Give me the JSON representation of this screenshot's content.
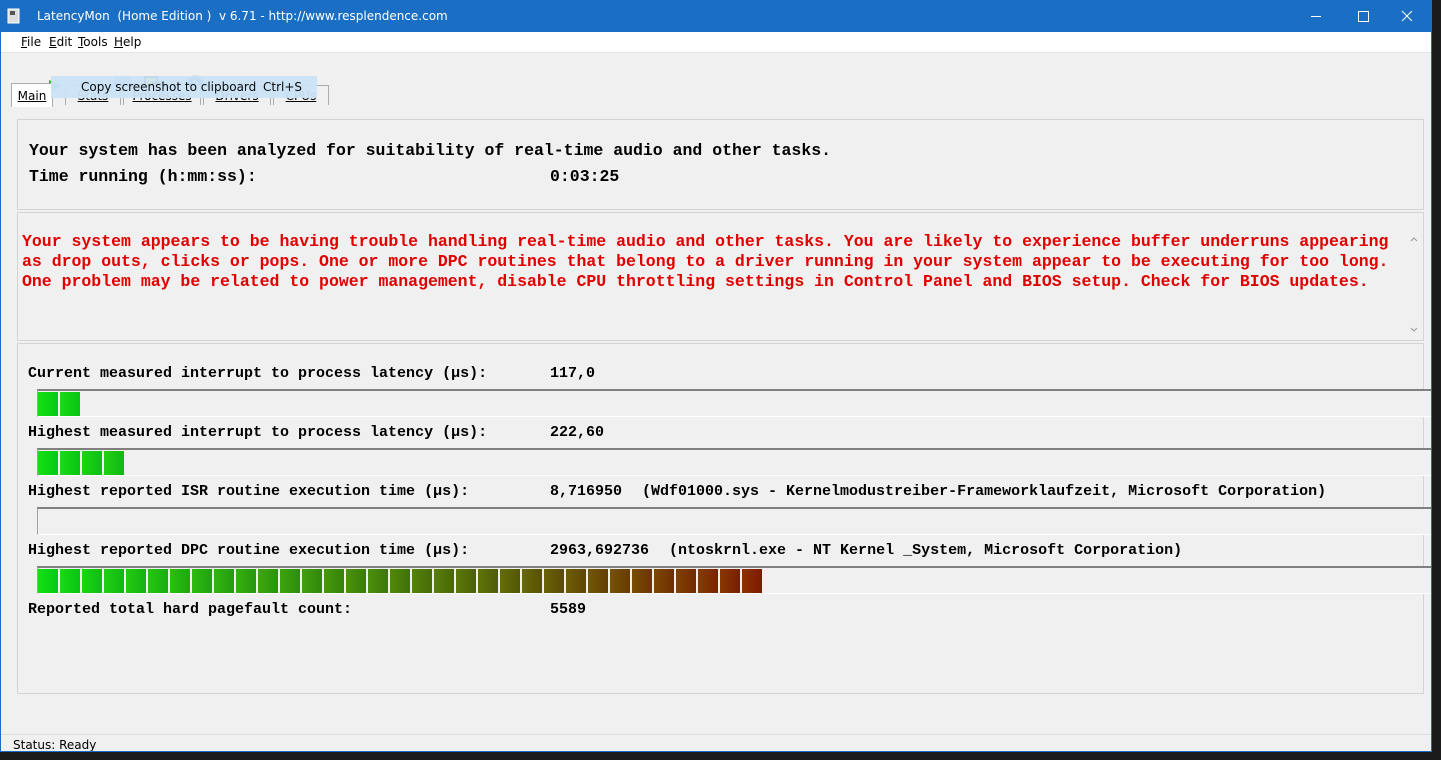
{
  "window": {
    "title": "LatencyMon  (Home Edition )  v 6.71 - http://www.resplendence.com"
  },
  "menu": [
    "File",
    "Edit",
    "Tools",
    "Help"
  ],
  "tooltip": {
    "text": "Copy screenshot to clipboard",
    "shortcut": "Ctrl+S"
  },
  "tabs": [
    "Main",
    "Stats",
    "Processes",
    "Drivers",
    "CPUs"
  ],
  "summary": {
    "message": "Your system has been analyzed for suitability of real-time audio and other tasks.",
    "time_label": "Time running (h:mm:ss):",
    "time_value": "0:03:25"
  },
  "warning": {
    "lines": [
      "Your system appears to be having trouble handling real-time audio and other tasks. You are likely to experience buffer underruns appearing",
      "as drop outs, clicks or pops. One or more DPC routines that belong to a driver running in your system appear to be executing for too long.",
      "One problem may be related to power management, disable CPU throttling settings in Control Panel and BIOS setup. Check for BIOS updates."
    ]
  },
  "metrics": [
    {
      "label": "Current measured interrupt to process latency (µs):",
      "value": "117,0",
      "segments": 2
    },
    {
      "label": "Highest measured interrupt to process latency (µs):",
      "value": "222,60",
      "segments": 4
    },
    {
      "label": "Highest reported ISR routine execution time (µs):",
      "value": "8,716950",
      "detail": "(Wdf01000.sys - Kernelmodustreiber-Frameworklaufzeit, Microsoft Corporation)",
      "segments": 0
    },
    {
      "label": "Highest reported DPC routine execution time (µs):",
      "value": "2963,692736",
      "detail": "(ntoskrnl.exe - NT Kernel _System, Microsoft Corporation)",
      "segments": 33
    },
    {
      "label": "Reported total hard pagefault count:",
      "value": "5589"
    }
  ],
  "status": "Status: Ready"
}
